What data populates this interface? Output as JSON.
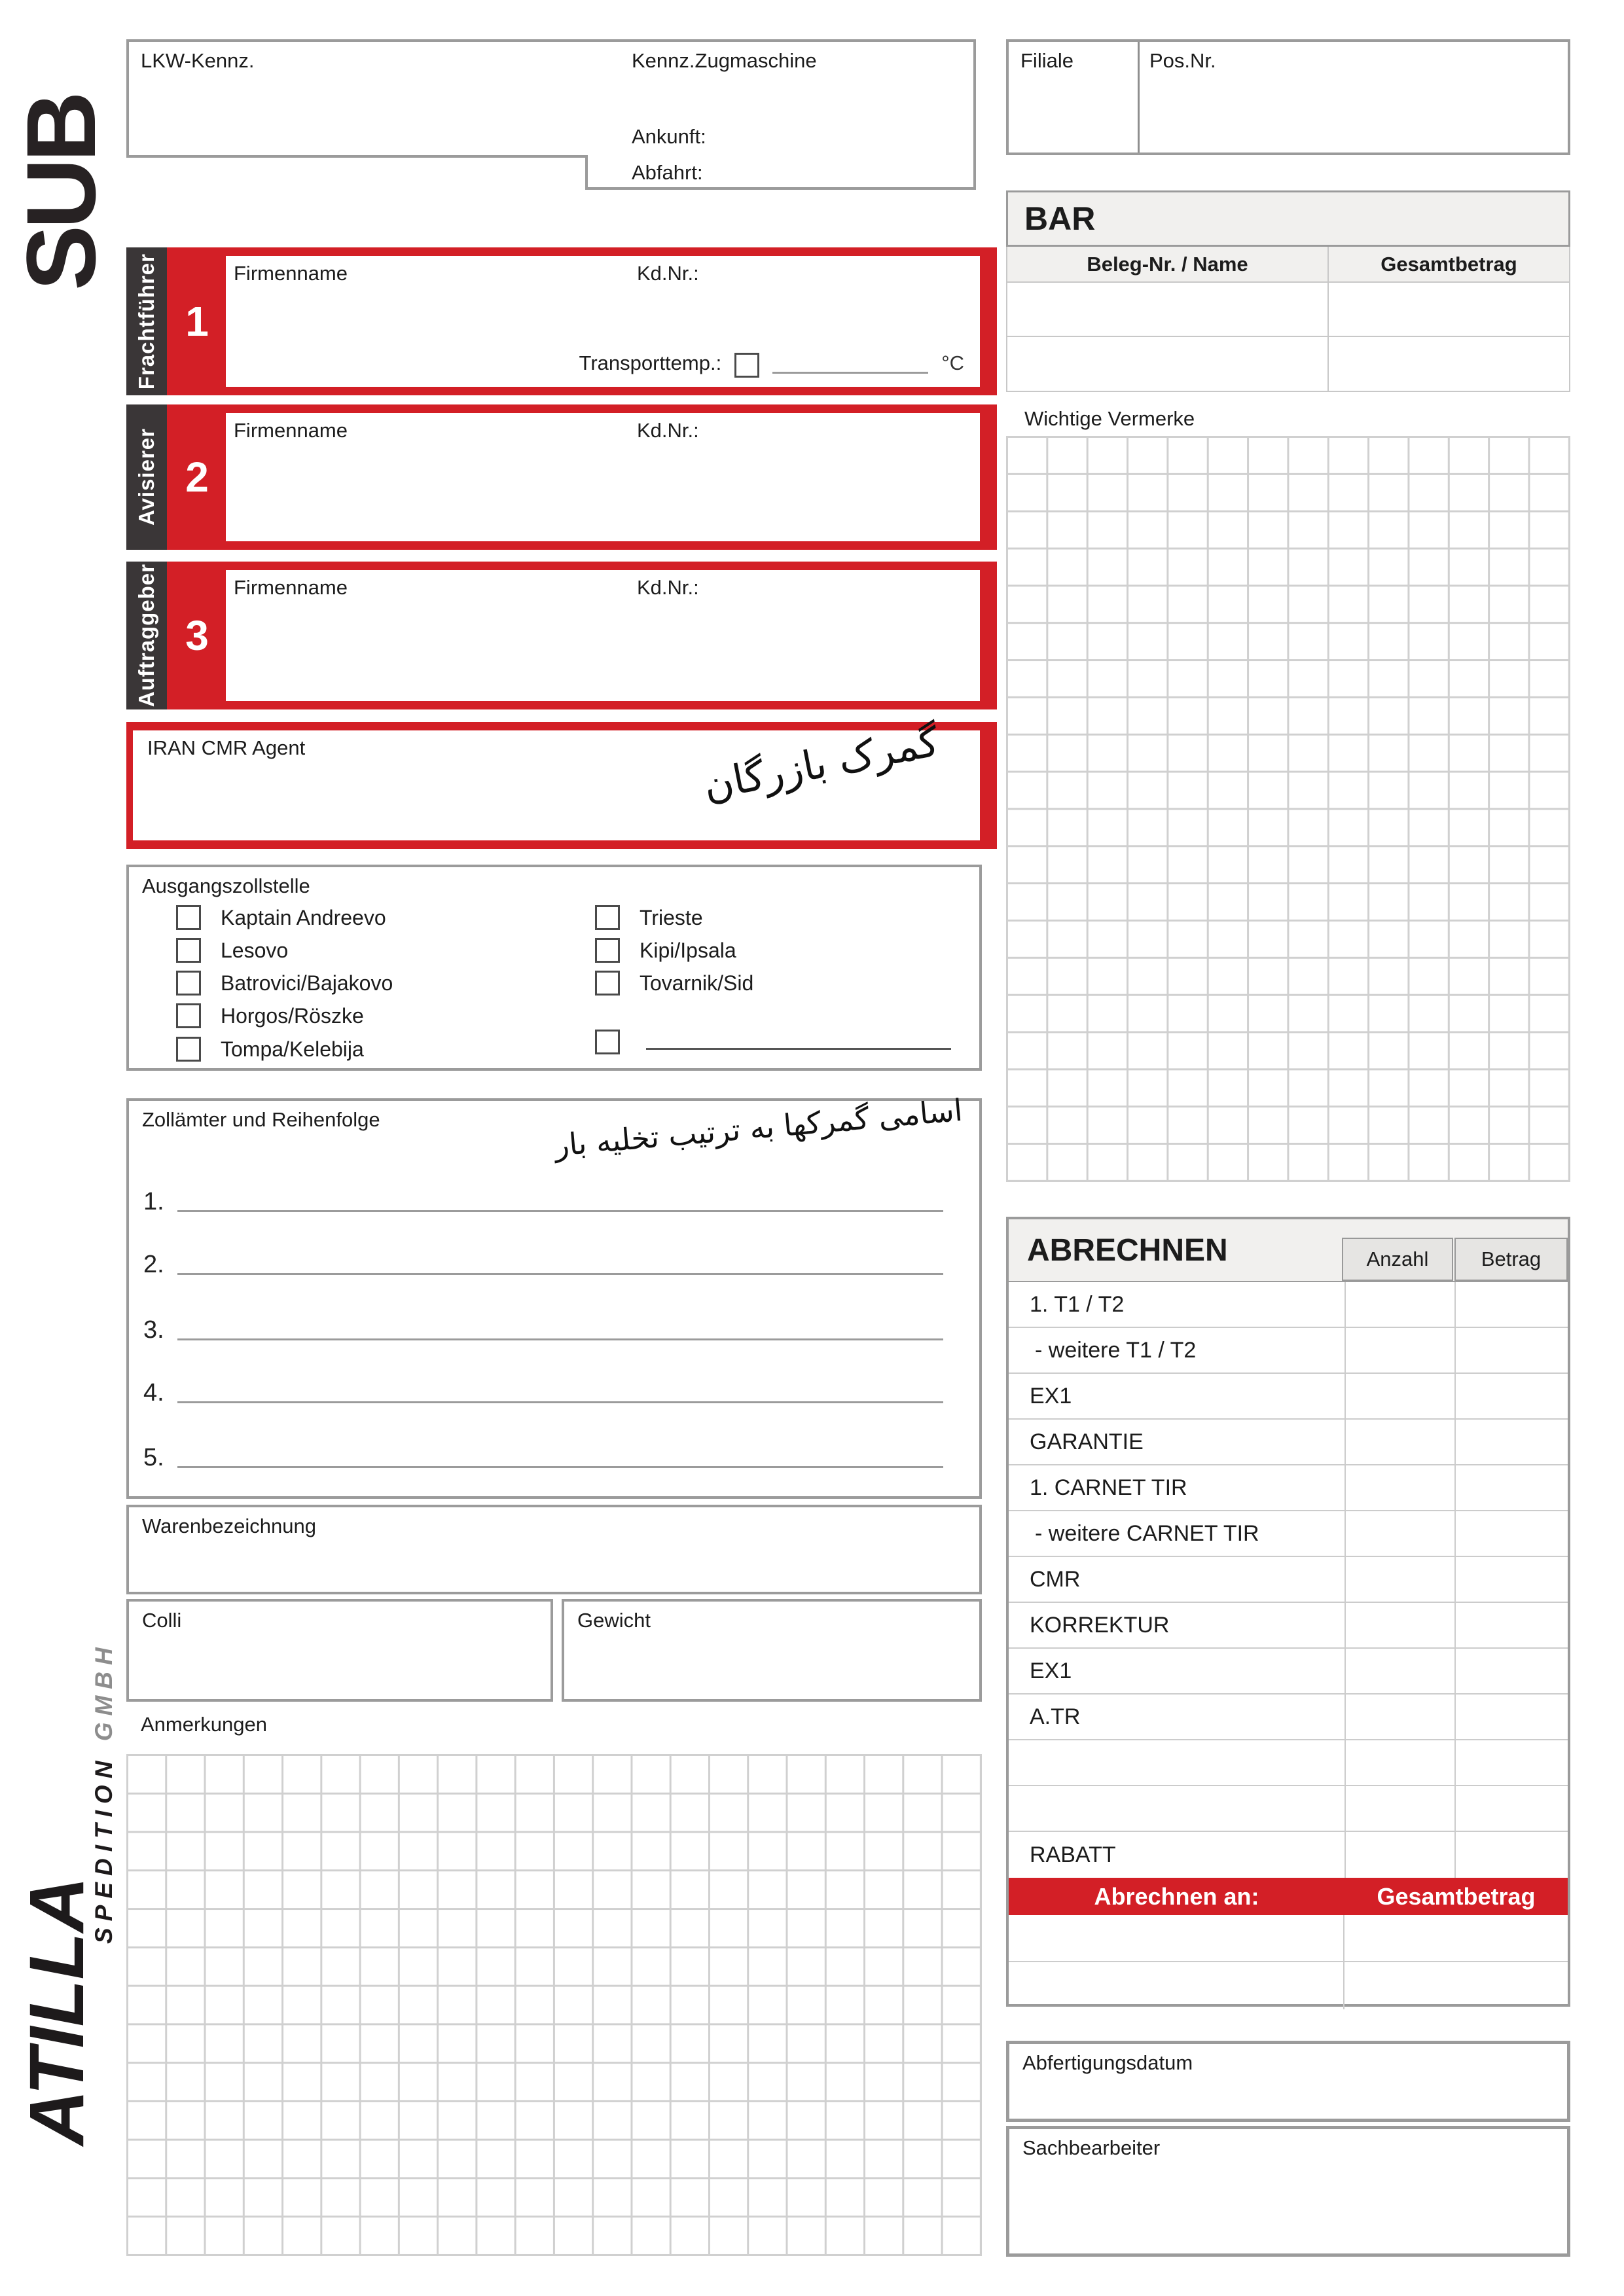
{
  "logo": {
    "sub": "SUB",
    "atilla": "ATILLA",
    "spedition": "SPEDITION",
    "gmbh": "GMBH"
  },
  "top": {
    "lkw": "LKW-Kennz.",
    "zugmaschine": "Kennz.Zugmaschine",
    "ankunft": "Ankunft:",
    "abfahrt": "Abfahrt:",
    "filiale": "Filiale",
    "posnr": "Pos.Nr."
  },
  "bar": {
    "title": "BAR",
    "col_name": "Beleg-Nr. / Name",
    "col_amount": "Gesamtbetrag",
    "empty_rows": 2
  },
  "sections": {
    "firmenname": "Firmenname",
    "kdnr": "Kd.Nr.:",
    "transporttemp": "Transporttemp.:",
    "celsius": "°C",
    "items": [
      {
        "num": "1",
        "label": "Frachtführer"
      },
      {
        "num": "2",
        "label": "Avisierer"
      },
      {
        "num": "3",
        "label": "Auftraggeber"
      }
    ]
  },
  "iran": {
    "label": "IRAN CMR Agent",
    "handwriting": "گمرک بازرگان"
  },
  "vermerke": {
    "title": "Wichtige Vermerke"
  },
  "zollstelle": {
    "title": "Ausgangszollstelle",
    "col1": [
      "Kaptain Andreevo",
      "Lesovo",
      "Batrovici/Bajakovo",
      "Horgos/Röszke",
      "Tompa/Kelebija"
    ],
    "col2": [
      "Trieste",
      "Kipi/Ipsala",
      "Tovarnik/Sid"
    ]
  },
  "zollaemter": {
    "title": "Zollämter und Reihenfolge",
    "handwriting": "اسامی گمرکها به ترتیب تخلیه بار",
    "lines": [
      "1.",
      "2.",
      "3.",
      "4.",
      "5."
    ]
  },
  "goods": {
    "waren": "Warenbezeichnung",
    "colli": "Colli",
    "gewicht": "Gewicht",
    "anmerkungen": "Anmerkungen"
  },
  "abrechnen": {
    "title": "ABRECHNEN",
    "anzahl": "Anzahl",
    "betrag": "Betrag",
    "rows": [
      "1. T1 / T2",
      "- weitere T1 / T2",
      "EX1",
      "GARANTIE",
      "1. CARNET TIR",
      "- weitere CARNET TIR",
      "CMR",
      "KORREKTUR",
      "EX1",
      "A.TR",
      "",
      "",
      "RABATT"
    ],
    "redbar_left": "Abrechnen an:",
    "redbar_right": "Gesamtbetrag"
  },
  "bottom": {
    "abfertigung": "Abfertigungsdatum",
    "sachbearbeiter": "Sachbearbeiter"
  },
  "colors": {
    "red": "#d31f26",
    "dark_bar": "#3a3637",
    "border_gray": "#9b9b9b",
    "grid_gray": "#d0d0d0",
    "header_bg": "#f1f0ee"
  }
}
